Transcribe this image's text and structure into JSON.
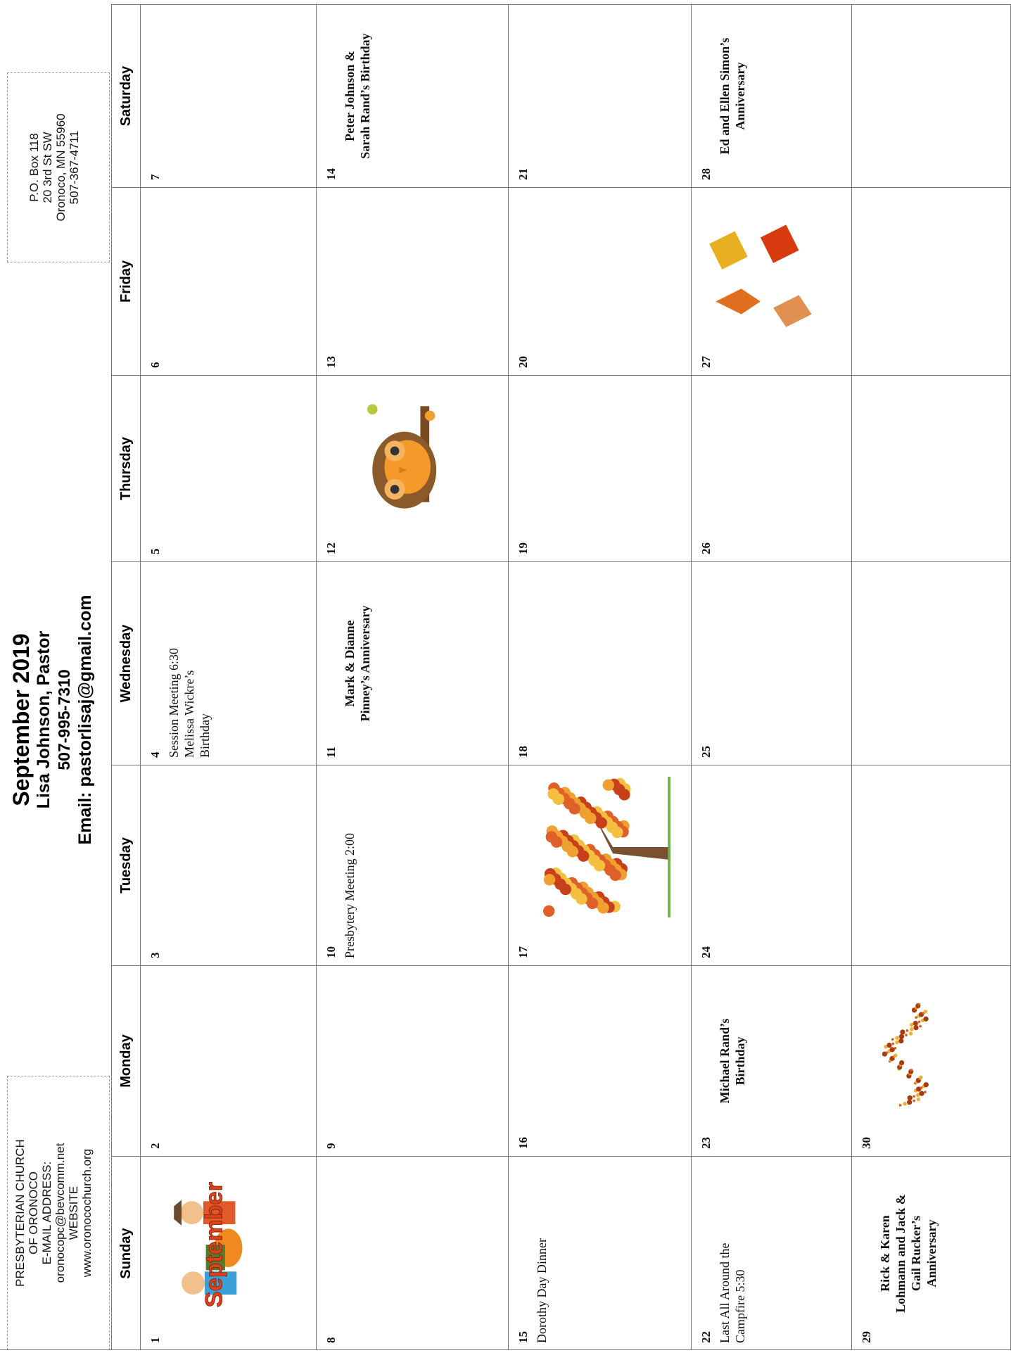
{
  "header": {
    "church": [
      "PRESBYTERIAN CHURCH",
      "OF ORONOCO",
      "E-MAIL ADDRESS:",
      "oronocopc@bevcomm.net",
      "WEBSITE",
      "www.oronocochurch.org"
    ],
    "title": "September 2019",
    "pastor": "Lisa Johnson, Pastor",
    "phone": "507-995-7310",
    "email": "Email: pastorlisaj@gmail.com",
    "address": [
      "P.O. Box 118",
      "20 3rd St SW",
      "Oronoco, MN 55960",
      "507-367-4711"
    ]
  },
  "calendar": {
    "days": [
      "Sunday",
      "Monday",
      "Tuesday",
      "Wednesday",
      "Thursday",
      "Friday",
      "Saturday"
    ],
    "clipart_text": "September",
    "weeks": [
      [
        {
          "day": 1,
          "events": []
        },
        {
          "day": 2,
          "events": []
        },
        {
          "day": 3,
          "events": []
        },
        {
          "day": 4,
          "events": [
            "Session Meeting 6:30",
            "Melissa Wickre’s",
            "Birthday"
          ]
        },
        {
          "day": 5,
          "events": []
        },
        {
          "day": 6,
          "events": []
        },
        {
          "day": 7,
          "events": []
        }
      ],
      [
        {
          "day": 8,
          "events": []
        },
        {
          "day": 9,
          "events": []
        },
        {
          "day": 10,
          "events": [
            "Presbytery Meeting 2:00"
          ]
        },
        {
          "day": 11,
          "events": [
            "Mark & Dianne",
            "Pinney’s Anniversary"
          ],
          "bold": true
        },
        {
          "day": 12,
          "events": []
        },
        {
          "day": 13,
          "events": []
        },
        {
          "day": 14,
          "events": [
            "Peter Johnson &",
            "Sarah Rand’s Birthday"
          ],
          "bold": true
        }
      ],
      [
        {
          "day": 15,
          "events": [
            "Dorothy Day Dinner"
          ]
        },
        {
          "day": 16,
          "events": []
        },
        {
          "day": 17,
          "events": []
        },
        {
          "day": 18,
          "events": []
        },
        {
          "day": 19,
          "events": []
        },
        {
          "day": 20,
          "events": []
        },
        {
          "day": 21,
          "events": []
        }
      ],
      [
        {
          "day": 22,
          "events": [
            "Last All Around the",
            "Campfire 5:30"
          ]
        },
        {
          "day": 23,
          "events": [
            "Michael Rand’s",
            "Birthday"
          ],
          "bold": true
        },
        {
          "day": 24,
          "events": []
        },
        {
          "day": 25,
          "events": []
        },
        {
          "day": 26,
          "events": []
        },
        {
          "day": 27,
          "events": []
        },
        {
          "day": 28,
          "events": [
            "Ed and Ellen Simon’s",
            "Anniversary"
          ],
          "bold": true
        }
      ],
      [
        {
          "day": 29,
          "events": [
            "Rick & Karen",
            "Lohmann and Jack &",
            "Gail Rucker’s",
            "Anniversary"
          ],
          "bold": true
        },
        {
          "day": 30,
          "events": []
        },
        null,
        null,
        null,
        null,
        null
      ]
    ]
  }
}
